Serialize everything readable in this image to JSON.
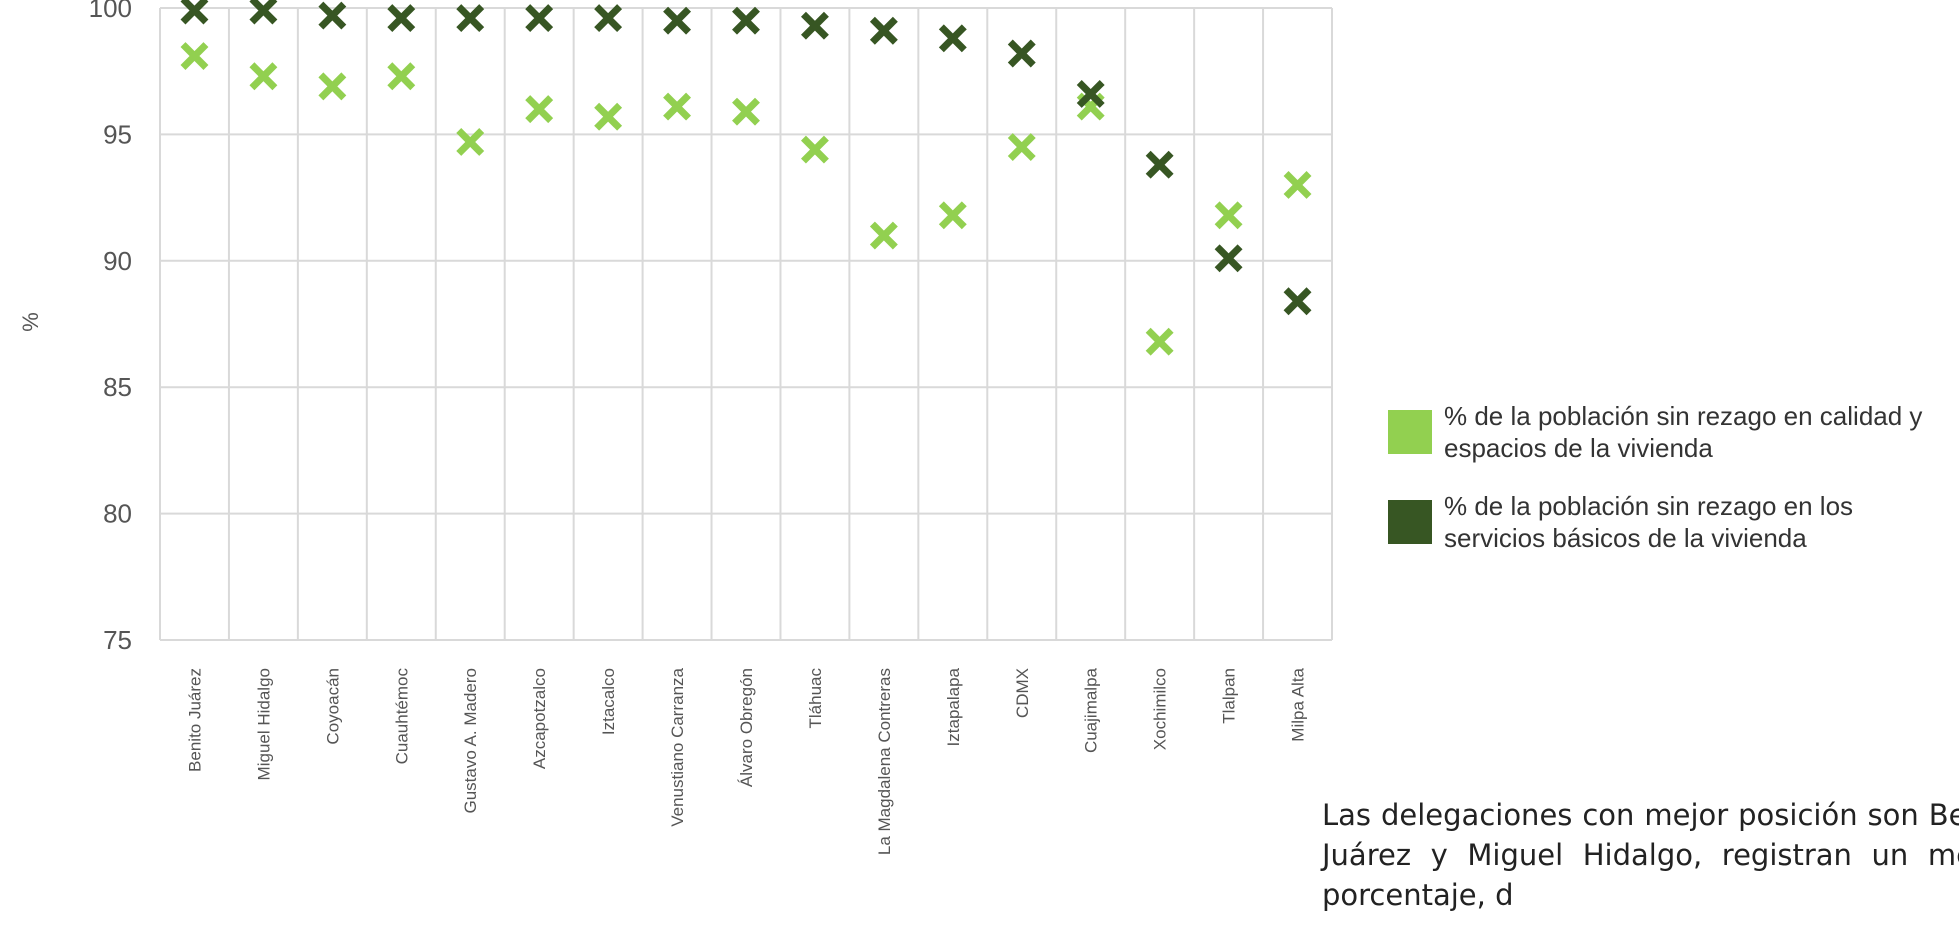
{
  "chart_data": {
    "type": "scatter",
    "title": "",
    "xlabel": "",
    "ylabel": "%",
    "ylim": [
      75,
      100
    ],
    "yticks": [
      "75",
      "80",
      "85",
      "90",
      "95",
      "100"
    ],
    "grid": true,
    "legend_position": "right",
    "categories": [
      "Benito Juárez",
      "Miguel Hidalgo",
      "Coyoacán",
      "Cuauhtémoc",
      "Gustavo A. Madero",
      "Azcapotzalco",
      "Iztacalco",
      "Venustiano Carranza",
      "Álvaro Obregón",
      "Tláhuac",
      "La Magdalena Contreras",
      "Iztapalapa",
      "CDMX",
      "Cuajimalpa",
      "Xochimilco",
      "Tlalpan",
      "Milpa Alta"
    ],
    "series": [
      {
        "name": "% de la población sin rezago en calidad y espacios de la vivienda",
        "color": "#92d050",
        "marker": "x",
        "values": [
          98.1,
          97.3,
          96.9,
          97.3,
          94.7,
          96.0,
          95.7,
          96.1,
          95.9,
          94.4,
          91.0,
          91.8,
          94.5,
          96.1,
          86.8,
          91.8,
          93.0
        ]
      },
      {
        "name": "% de la población sin rezago en los servicios básicos de la vivienda",
        "color": "#375623",
        "marker": "x",
        "values": [
          99.9,
          99.9,
          99.7,
          99.6,
          99.6,
          99.6,
          99.6,
          99.5,
          99.5,
          99.3,
          99.1,
          98.8,
          98.2,
          96.6,
          93.8,
          90.1,
          88.4
        ]
      }
    ]
  },
  "legend": {
    "item1": "% de la población sin rezago en calidad y espacios de la vivienda",
    "item2": "% de la población sin rezago en los servicios básicos de la vivienda"
  },
  "note": "Las delegaciones con mejor posición son Benito Juárez y Miguel Hidalgo, registran un menor porcentaje, d"
}
